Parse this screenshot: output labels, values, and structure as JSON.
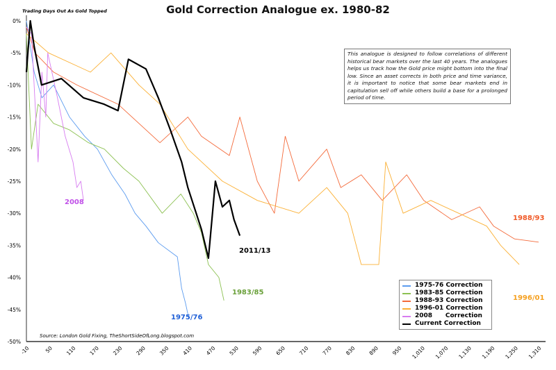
{
  "chart_data": {
    "type": "line",
    "title": "Gold Correction Analogue ex. 1980-82",
    "subtitle_note": "Trading Days Out As Gold Topped",
    "annotation": "This analogue is designed to follow correlations of different historical bear markets over the last 40 years. The analogues helps us track how the Gold price might bottom into the final low. Since an asset corrects in both price and time variance, it is important to notice that some bear markets end in capitulation sell off while others build a base for a prolonged period of time.",
    "source": "Source: London Gold Fixing, TheShortSideOfLong.blogspot.com",
    "xlim": [
      -10,
      1310
    ],
    "ylim": [
      -50,
      0
    ],
    "x_ticks": [
      "-10",
      "50",
      "110",
      "170",
      "230",
      "290",
      "350",
      "410",
      "470",
      "530",
      "590",
      "650",
      "710",
      "770",
      "830",
      "890",
      "950",
      "1,010",
      "1,070",
      "1,130",
      "1,190",
      "1,250",
      "1,310"
    ],
    "y_ticks": [
      "0%",
      "-5%",
      "-10%",
      "-15%",
      "-20%",
      "-25%",
      "-30%",
      "-35%",
      "-40%",
      "-45%",
      "-50%"
    ],
    "legend_position": "bottom-right",
    "series": [
      {
        "name": "1975-76 Correction",
        "label": "1975/76",
        "color": "#5b9bef",
        "label_color": "#1f5fd6",
        "points": [
          [
            -10,
            0
          ],
          [
            0,
            -4
          ],
          [
            10,
            -8
          ],
          [
            30,
            -12
          ],
          [
            60,
            -10
          ],
          [
            101,
            -15
          ],
          [
            140,
            -18
          ],
          [
            173,
            -20
          ],
          [
            210,
            -24
          ],
          [
            244,
            -27
          ],
          [
            270,
            -30
          ],
          [
            298,
            -32
          ],
          [
            330,
            -34.6
          ],
          [
            379,
            -36.8
          ],
          [
            390,
            -41.7
          ],
          [
            400,
            -44
          ],
          [
            409,
            -46.5
          ]
        ]
      },
      {
        "name": "1983-85 Correction",
        "label": "1983/85",
        "color": "#8cc152",
        "label_color": "#6aa03a",
        "points": [
          [
            -10,
            -2
          ],
          [
            3,
            -20
          ],
          [
            20,
            -13
          ],
          [
            60,
            -16
          ],
          [
            101,
            -17
          ],
          [
            150,
            -19
          ],
          [
            191,
            -20
          ],
          [
            240,
            -23
          ],
          [
            280,
            -25
          ],
          [
            340,
            -30
          ],
          [
            388,
            -27
          ],
          [
            420,
            -30
          ],
          [
            441,
            -33
          ],
          [
            459,
            -38
          ],
          [
            486,
            -40
          ],
          [
            499,
            -43.6
          ]
        ]
      },
      {
        "name": "1988-93 Correction",
        "label": "1988/93",
        "color": "#f46a3a",
        "label_color": "#f05a28",
        "points": [
          [
            -10,
            -1
          ],
          [
            12,
            -5
          ],
          [
            60,
            -8
          ],
          [
            120,
            -10
          ],
          [
            226,
            -13
          ],
          [
            334,
            -19
          ],
          [
            406,
            -15
          ],
          [
            441,
            -18
          ],
          [
            513,
            -21
          ],
          [
            540,
            -15
          ],
          [
            585,
            -25
          ],
          [
            629,
            -30
          ],
          [
            657,
            -18
          ],
          [
            692,
            -25
          ],
          [
            764,
            -20
          ],
          [
            800,
            -26
          ],
          [
            853,
            -24
          ],
          [
            907,
            -28
          ],
          [
            970,
            -24
          ],
          [
            1014,
            -28
          ],
          [
            1086,
            -31
          ],
          [
            1158,
            -29
          ],
          [
            1194,
            -32
          ],
          [
            1248,
            -34
          ],
          [
            1310,
            -34.5
          ]
        ]
      },
      {
        "name": "1996-01 Correction",
        "label": "1996/01",
        "color": "#fbb034",
        "label_color": "#f5a020",
        "points": [
          [
            -10,
            -2
          ],
          [
            47,
            -5
          ],
          [
            155,
            -8
          ],
          [
            208,
            -5
          ],
          [
            280,
            -10
          ],
          [
            334,
            -13
          ],
          [
            406,
            -20
          ],
          [
            495,
            -25
          ],
          [
            585,
            -28
          ],
          [
            692,
            -30
          ],
          [
            764,
            -26
          ],
          [
            818,
            -30
          ],
          [
            853,
            -38
          ],
          [
            898,
            -38
          ],
          [
            916,
            -22
          ],
          [
            961,
            -30
          ],
          [
            1032,
            -28
          ],
          [
            1104,
            -30
          ],
          [
            1176,
            -32
          ],
          [
            1212,
            -35
          ],
          [
            1260,
            -38
          ]
        ]
      },
      {
        "name": "2008      Correction",
        "label": "2008",
        "color": "#d77cf0",
        "label_color": "#c050e8",
        "points": [
          [
            -10,
            -1
          ],
          [
            3,
            -2
          ],
          [
            20,
            -22
          ],
          [
            30,
            -8
          ],
          [
            40,
            -15
          ],
          [
            45,
            -5
          ],
          [
            70,
            -12
          ],
          [
            90,
            -18
          ],
          [
            110,
            -22
          ],
          [
            120,
            -26
          ],
          [
            130,
            -25
          ],
          [
            137,
            -28
          ]
        ]
      },
      {
        "name": "Current Correction",
        "label": "2011/13",
        "color": "#000000",
        "label_color": "#000000",
        "points": [
          [
            -10,
            -8
          ],
          [
            0,
            0
          ],
          [
            10,
            -4
          ],
          [
            29,
            -10
          ],
          [
            80,
            -9
          ],
          [
            137,
            -12
          ],
          [
            190,
            -13
          ],
          [
            226,
            -14
          ],
          [
            253,
            -6
          ],
          [
            298,
            -7.5
          ],
          [
            330,
            -12
          ],
          [
            361,
            -17
          ],
          [
            390,
            -22
          ],
          [
            406,
            -26
          ],
          [
            441,
            -32.5
          ],
          [
            459,
            -37
          ],
          [
            477,
            -25
          ],
          [
            495,
            -29
          ],
          [
            513,
            -28
          ],
          [
            525,
            -31
          ],
          [
            540,
            -33.5
          ]
        ]
      }
    ]
  }
}
